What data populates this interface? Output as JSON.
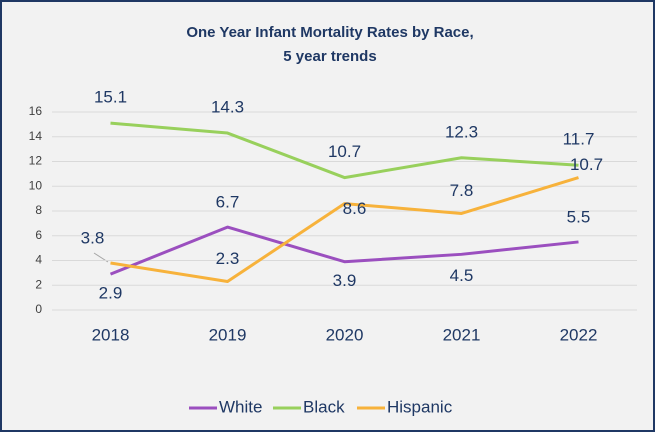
{
  "chart_data": {
    "type": "line",
    "title": [
      "One Year Infant Mortality Rates by Race,",
      "5 year trends"
    ],
    "categories": [
      "2018",
      "2019",
      "2020",
      "2021",
      "2022"
    ],
    "series": [
      {
        "name": "White",
        "color": "#9b4fbf",
        "values": [
          2.9,
          6.7,
          3.9,
          4.5,
          5.5
        ]
      },
      {
        "name": "Black",
        "color": "#98d05c",
        "values": [
          15.1,
          14.3,
          10.7,
          12.3,
          11.7
        ]
      },
      {
        "name": "Hispanic",
        "color": "#f7b23b",
        "values": [
          3.8,
          2.3,
          8.6,
          7.8,
          10.7
        ]
      }
    ],
    "ylim": [
      0,
      16
    ],
    "yticks": [
      0,
      2,
      4,
      6,
      8,
      10,
      12,
      14,
      16
    ],
    "grid": true,
    "legend": "bottom"
  }
}
